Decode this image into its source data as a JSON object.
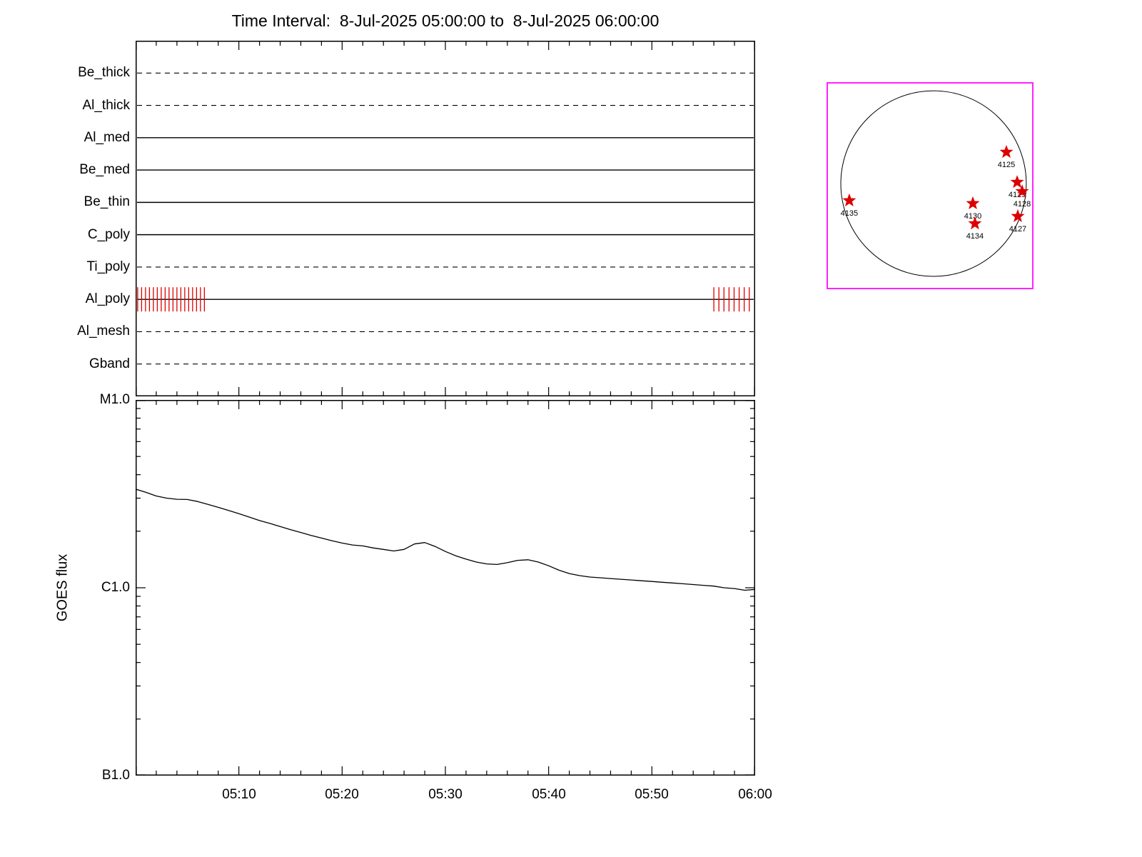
{
  "title": "Time Interval:  8-Jul-2025 05:00:00 to  8-Jul-2025 06:00:00",
  "colors": {
    "accent_red": "#dd0000",
    "magenta_box": "#ff22ff",
    "line_black": "#000000"
  },
  "chart_data": [
    {
      "type": "timeline",
      "name": "instrument_filter_timeline",
      "x_range_minutes": [
        0,
        60
      ],
      "x_major_tick_minutes": 10,
      "x_minor_tick_minutes": 2,
      "rows": [
        {
          "label": "Be_thick",
          "line_style": "dashed"
        },
        {
          "label": "Al_thick",
          "line_style": "dashed"
        },
        {
          "label": "Al_med",
          "line_style": "solid"
        },
        {
          "label": "Be_med",
          "line_style": "solid"
        },
        {
          "label": "Be_thin",
          "line_style": "solid"
        },
        {
          "label": "C_poly",
          "line_style": "solid"
        },
        {
          "label": "Ti_poly",
          "line_style": "dashed"
        },
        {
          "label": "Al_poly",
          "line_style": "solid",
          "exposure_intervals_minutes": [
            {
              "start": 0.2,
              "end": 6.8,
              "tick_step": 0.38
            },
            {
              "start": 56.0,
              "end": 59.7,
              "tick_step": 0.49
            }
          ]
        },
        {
          "label": "Al_mesh",
          "line_style": "dashed"
        },
        {
          "label": "Gband",
          "line_style": "dashed"
        }
      ]
    },
    {
      "type": "line",
      "name": "goes_flux",
      "ylabel": "GOES flux",
      "y_scale": "log",
      "y_range_wm2": [
        1e-07,
        1e-05
      ],
      "y_tick_labels": [
        "M1.0",
        "C1.0",
        "B1.0"
      ],
      "x_tick_labels": [
        "05:10",
        "05:20",
        "05:30",
        "05:40",
        "05:50",
        "06:00"
      ],
      "x_tick_minutes": [
        10,
        20,
        30,
        40,
        50,
        60
      ],
      "series": [
        {
          "name": "GOES long channel flux",
          "x_minutes": [
            0,
            1,
            2,
            3,
            4,
            5,
            6,
            7,
            8,
            9,
            10,
            11,
            12,
            13,
            14,
            15,
            16,
            17,
            18,
            19,
            20,
            21,
            22,
            23,
            24,
            25,
            26,
            27,
            28,
            29,
            30,
            31,
            32,
            33,
            34,
            35,
            36,
            37,
            38,
            39,
            40,
            41,
            42,
            43,
            44,
            45,
            46,
            47,
            48,
            49,
            50,
            51,
            52,
            53,
            54,
            55,
            56,
            57,
            58,
            59,
            60
          ],
          "flux_1e6_wm2": [
            3.35,
            3.22,
            3.08,
            3.0,
            2.96,
            2.95,
            2.88,
            2.78,
            2.68,
            2.58,
            2.48,
            2.38,
            2.28,
            2.2,
            2.12,
            2.04,
            1.97,
            1.9,
            1.84,
            1.78,
            1.73,
            1.69,
            1.67,
            1.63,
            1.6,
            1.57,
            1.6,
            1.71,
            1.74,
            1.66,
            1.56,
            1.48,
            1.42,
            1.37,
            1.34,
            1.33,
            1.36,
            1.4,
            1.41,
            1.37,
            1.31,
            1.24,
            1.19,
            1.16,
            1.14,
            1.13,
            1.12,
            1.11,
            1.1,
            1.09,
            1.08,
            1.07,
            1.06,
            1.05,
            1.04,
            1.03,
            1.02,
            1.0,
            0.99,
            0.97,
            0.98
          ]
        }
      ]
    },
    {
      "type": "scatter",
      "name": "solar_disk_active_regions",
      "disk": {
        "cx": 0.517,
        "cy": 0.49,
        "r": 0.448
      },
      "regions": [
        {
          "label": "4125",
          "x": 0.869,
          "y": 0.338
        },
        {
          "label": "4129",
          "x": 0.921,
          "y": 0.483
        },
        {
          "label": "4128",
          "x": 0.945,
          "y": 0.528
        },
        {
          "label": "4130",
          "x": 0.707,
          "y": 0.586
        },
        {
          "label": "4134",
          "x": 0.717,
          "y": 0.683
        },
        {
          "label": "4127",
          "x": 0.924,
          "y": 0.648
        },
        {
          "label": "4135",
          "x": 0.11,
          "y": 0.572
        }
      ]
    }
  ]
}
